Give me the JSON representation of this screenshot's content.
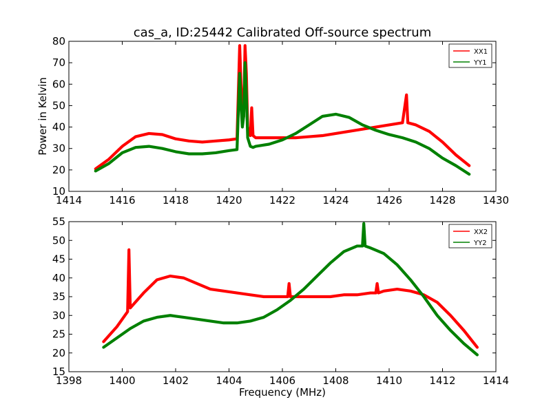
{
  "chart_data": [
    {
      "type": "line",
      "title": "cas_a, ID:25442 Calibrated Off-source spectrum",
      "xlabel": "",
      "ylabel": "Power in Kelvin",
      "xlim": [
        1414,
        1430
      ],
      "ylim": [
        10,
        80
      ],
      "xticks": [
        "1414",
        "1416",
        "1418",
        "1420",
        "1422",
        "1424",
        "1426",
        "1428",
        "1430"
      ],
      "yticks": [
        "10",
        "20",
        "30",
        "40",
        "50",
        "60",
        "70",
        "80"
      ],
      "legend_position": "top-right",
      "grid": false,
      "series": [
        {
          "name": "XX1",
          "color": "#ff0000",
          "x": [
            1415.0,
            1415.5,
            1416.0,
            1416.5,
            1417.0,
            1417.5,
            1418.0,
            1418.5,
            1419.0,
            1419.5,
            1420.0,
            1420.3,
            1420.4,
            1420.45,
            1420.5,
            1420.55,
            1420.6,
            1420.65,
            1420.7,
            1420.8,
            1420.85,
            1420.9,
            1421.0,
            1421.5,
            1422.0,
            1422.5,
            1423.0,
            1423.5,
            1424.0,
            1424.5,
            1425.0,
            1425.5,
            1426.0,
            1426.5,
            1426.65,
            1426.7,
            1427.0,
            1427.5,
            1428.0,
            1428.5,
            1429.0
          ],
          "values": [
            20.5,
            25,
            31,
            35.5,
            37,
            36.5,
            34.5,
            33.5,
            33,
            33.5,
            34,
            34.5,
            78,
            60,
            50,
            45,
            78,
            65,
            40,
            36,
            49,
            36,
            35,
            35,
            35,
            35,
            35.5,
            36,
            37,
            38,
            39,
            40,
            41,
            42,
            55,
            42,
            41,
            38,
            33,
            27,
            22
          ]
        },
        {
          "name": "YY1",
          "color": "#008000",
          "x": [
            1415.0,
            1415.5,
            1416.0,
            1416.5,
            1417.0,
            1417.5,
            1418.0,
            1418.5,
            1419.0,
            1419.5,
            1420.0,
            1420.3,
            1420.4,
            1420.45,
            1420.5,
            1420.55,
            1420.6,
            1420.65,
            1420.7,
            1420.8,
            1420.9,
            1421.0,
            1421.5,
            1422.0,
            1422.5,
            1423.0,
            1423.5,
            1424.0,
            1424.5,
            1425.0,
            1425.5,
            1426.0,
            1426.5,
            1427.0,
            1427.5,
            1428.0,
            1428.5,
            1429.0
          ],
          "values": [
            19.5,
            23,
            28,
            30.5,
            31,
            30,
            28.5,
            27.5,
            27.5,
            28,
            29,
            29.5,
            65,
            50,
            40,
            45,
            70,
            55,
            35,
            31,
            30.5,
            31,
            32,
            34,
            37,
            41,
            45,
            46,
            44.5,
            41,
            38.5,
            36.5,
            35,
            33,
            30,
            25.5,
            22,
            18
          ]
        }
      ]
    },
    {
      "type": "line",
      "title": "",
      "xlabel": "Frequency (MHz)",
      "ylabel": "",
      "xlim": [
        1398,
        1414
      ],
      "ylim": [
        15,
        55
      ],
      "xticks": [
        "1398",
        "1400",
        "1402",
        "1404",
        "1406",
        "1408",
        "1410",
        "1412",
        "1414"
      ],
      "yticks": [
        "15",
        "20",
        "25",
        "30",
        "35",
        "40",
        "45",
        "50",
        "55"
      ],
      "legend_position": "top-right",
      "grid": false,
      "series": [
        {
          "name": "XX2",
          "color": "#ff0000",
          "x": [
            1399.3,
            1399.8,
            1400.2,
            1400.25,
            1400.3,
            1400.8,
            1401.3,
            1401.8,
            1402.3,
            1402.8,
            1403.3,
            1403.8,
            1404.3,
            1404.8,
            1405.3,
            1405.8,
            1406.2,
            1406.25,
            1406.3,
            1406.8,
            1407.3,
            1407.8,
            1408.3,
            1408.8,
            1409.3,
            1409.5,
            1409.55,
            1409.6,
            1409.8,
            1410.3,
            1410.8,
            1411.3,
            1411.8,
            1412.3,
            1412.8,
            1413.3
          ],
          "values": [
            23,
            27,
            31,
            47.5,
            32,
            36,
            39.5,
            40.5,
            40,
            38.5,
            37,
            36.5,
            36,
            35.5,
            35,
            35,
            35,
            38.5,
            35,
            35,
            35,
            35,
            35.5,
            35.5,
            36,
            36,
            38.5,
            36,
            36.5,
            37,
            36.5,
            35.5,
            33.5,
            30,
            26,
            21.5
          ]
        },
        {
          "name": "YY2",
          "color": "#008000",
          "x": [
            1399.3,
            1399.8,
            1400.3,
            1400.8,
            1401.3,
            1401.8,
            1402.3,
            1402.8,
            1403.3,
            1403.8,
            1404.3,
            1404.8,
            1405.3,
            1405.8,
            1406.3,
            1406.8,
            1407.3,
            1407.8,
            1408.3,
            1408.8,
            1409.0,
            1409.05,
            1409.1,
            1409.3,
            1409.8,
            1410.3,
            1410.8,
            1411.3,
            1411.8,
            1412.3,
            1412.8,
            1413.3
          ],
          "values": [
            21.5,
            24,
            26.5,
            28.5,
            29.5,
            30,
            29.5,
            29,
            28.5,
            28,
            28,
            28.5,
            29.5,
            31.5,
            34,
            37,
            40.5,
            44,
            47,
            48.5,
            48.5,
            54.5,
            48.5,
            48,
            46.5,
            43.5,
            39.5,
            35,
            30,
            26,
            22.5,
            19.5
          ]
        }
      ]
    }
  ]
}
